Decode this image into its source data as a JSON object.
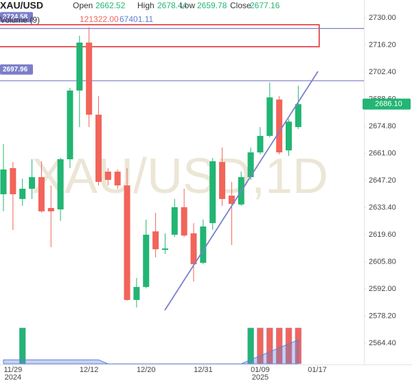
{
  "chart_data": {
    "type": "candlestick",
    "title": "XAU/USD",
    "watermark": "XAU/USD,1D",
    "header_labels": {
      "open": "Open",
      "high": "High",
      "low": "Low",
      "close": "Close"
    },
    "hover_index": 30,
    "volume_label": "Volume (9)",
    "volume_value_label": "121322.00",
    "up_color": "#22b573",
    "down_color": "#f2645a",
    "candles": {
      "open": [
        2640.2,
        2653.5,
        2637.8,
        2643.0,
        2648.9,
        2633.2,
        2632.5,
        2658.0,
        2693.0,
        2717.4,
        2680.7,
        2651.7,
        2651.7,
        2644.7,
        2586.4,
        2593.0,
        2621.3,
        2611.9,
        2619.6,
        2633.6,
        2620.3,
        2605.3,
        2625.5,
        2656.6,
        2639.5,
        2635.0,
        2648.9,
        2661.5,
        2669.9,
        2688.4,
        2662.52,
        2674.4
      ],
      "high": [
        2665.7,
        2656.6,
        2648.2,
        2658.0,
        2657.0,
        2644.7,
        2658.7,
        2694.4,
        2720.9,
        2725.1,
        2690.2,
        2653.5,
        2652.8,
        2653.5,
        2597.6,
        2627.3,
        2630.8,
        2620.3,
        2637.8,
        2643.0,
        2625.5,
        2627.3,
        2658.7,
        2664.0,
        2646.5,
        2651.7,
        2664.0,
        2674.4,
        2697.2,
        2690.2,
        2678.44,
        2695.4
      ],
      "low": [
        2631.5,
        2622.0,
        2634.3,
        2637.8,
        2630.8,
        2613.3,
        2626.6,
        2653.5,
        2674.4,
        2674.4,
        2644.7,
        2644.7,
        2643.0,
        2586.0,
        2582.6,
        2592.3,
        2608.1,
        2609.8,
        2618.5,
        2618.5,
        2595.8,
        2604.6,
        2622.0,
        2634.3,
        2614.3,
        2634.3,
        2647.5,
        2660.5,
        2669.2,
        2660.5,
        2659.78,
        2673.4
      ],
      "close": [
        2652.8,
        2640.2,
        2643.0,
        2648.9,
        2631.5,
        2631.5,
        2658.0,
        2693.0,
        2717.4,
        2680.7,
        2646.5,
        2647.5,
        2644.7,
        2586.4,
        2593.0,
        2619.6,
        2612.2,
        2612.6,
        2633.6,
        2619.2,
        2604.6,
        2623.8,
        2657.0,
        2637.8,
        2635.3,
        2648.9,
        2661.5,
        2669.9,
        2689.5,
        2661.5,
        2677.16,
        2686.1
      ]
    },
    "volume": [
      0,
      0,
      121322,
      0,
      0,
      0,
      0,
      0,
      0,
      0,
      0,
      0,
      0,
      0,
      0,
      0,
      0,
      0,
      0,
      0,
      0,
      0,
      0,
      0,
      0,
      0,
      121322,
      121322,
      121322,
      121322,
      121322,
      121322
    ],
    "volume_colors": [
      "#22b573",
      "#f2645a",
      "#22b573",
      "#22b573",
      "#f2645a",
      "#f2645a",
      "#22b573",
      "#22b573",
      "#22b573",
      "#f2645a",
      "#f2645a",
      "#f2645a",
      "#f2645a",
      "#f2645a",
      "#22b573",
      "#22b573",
      "#f2645a",
      "#22b573",
      "#22b573",
      "#f2645a",
      "#f2645a",
      "#22b573",
      "#22b573",
      "#f2645a",
      "#f2645a",
      "#22b573",
      "#22b573",
      "#f2645a",
      "#f2645a",
      "#f2645a",
      "#f2645a",
      "#f2645a"
    ],
    "volume_ma": [
      13480,
      13480,
      13480,
      13480,
      13480,
      13480,
      13480,
      13480,
      13480,
      13480,
      13480,
      0,
      0,
      0,
      0,
      0,
      0,
      0,
      0,
      0,
      0,
      0,
      0,
      0,
      0,
      0,
      13480,
      26960,
      40440,
      53920,
      67401.11,
      80880
    ],
    "ma_color": "#5b7fd6",
    "vlim": [
      0,
      130000
    ],
    "ylim": [
      2553.9,
      2739.08
    ],
    "yticks": [
      {
        "value": 2730,
        "label": "2730.00"
      },
      {
        "value": 2716.2,
        "label": "2716.20"
      },
      {
        "value": 2702.4,
        "label": "2702.40"
      },
      {
        "value": 2688.6,
        "label": "2688.60"
      },
      {
        "value": 2674.8,
        "label": "2674.80"
      },
      {
        "value": 2661,
        "label": "2661.00"
      },
      {
        "value": 2647.2,
        "label": "2647.20"
      },
      {
        "value": 2633.4,
        "label": "2633.40"
      },
      {
        "value": 2619.6,
        "label": "2619.60"
      },
      {
        "value": 2605.8,
        "label": "2605.80"
      },
      {
        "value": 2592,
        "label": "2592.00"
      },
      {
        "value": 2578.2,
        "label": "2578.20"
      },
      {
        "value": 2564.4,
        "label": "2564.40"
      }
    ],
    "xticks": [
      {
        "value": 1,
        "label": "11/29"
      },
      {
        "value": 9,
        "label": "12/12"
      },
      {
        "value": 15,
        "label": "12/20"
      },
      {
        "value": 21,
        "label": "12/31"
      },
      {
        "value": 27,
        "label": "01/09"
      },
      {
        "value": 33,
        "label": "01/17"
      }
    ],
    "year_labels": [
      {
        "value": 1,
        "label": "2024"
      },
      {
        "value": 27,
        "label": "2025"
      }
    ],
    "hlines": [
      2724.58,
      2697.96
    ],
    "hline_color": "#7b7fc9",
    "last_price_label": "2686.10",
    "zone": {
      "top": 2726.5,
      "bottom": 2715.3,
      "x_end": 33.2,
      "color": "#e0242b"
    },
    "trendline": {
      "x": [
        16.97,
        33.07
      ],
      "y": [
        2581.15,
        2702.74
      ],
      "color": "#7b7fc9"
    }
  }
}
